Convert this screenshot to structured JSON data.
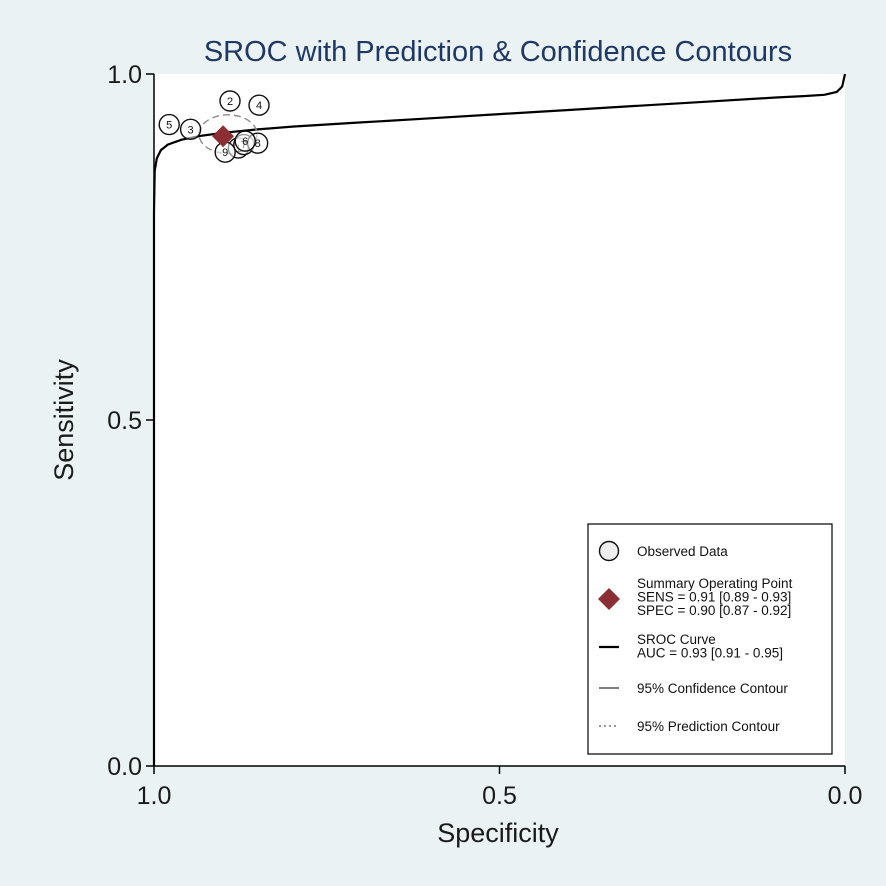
{
  "chart_data": {
    "type": "scatter",
    "title": "SROC with Prediction & Confidence Contours",
    "xlabel": "Specificity",
    "ylabel": "Sensitivity",
    "xlim": [
      1.0,
      0.0
    ],
    "ylim": [
      0.0,
      1.0
    ],
    "x_reversed": true,
    "grid": false,
    "x_ticks": [
      {
        "value": 1.0,
        "label": "1.0"
      },
      {
        "value": 0.5,
        "label": "0.5"
      },
      {
        "value": 0.0,
        "label": "0.0"
      }
    ],
    "y_ticks": [
      {
        "value": 0.0,
        "label": "0.0"
      },
      {
        "value": 0.5,
        "label": "0.5"
      },
      {
        "value": 1.0,
        "label": "1.0"
      }
    ],
    "observed_data": [
      {
        "study": "5",
        "specificity": 0.978,
        "sensitivity": 0.927
      },
      {
        "study": "3",
        "specificity": 0.947,
        "sensitivity": 0.92
      },
      {
        "study": "2",
        "specificity": 0.89,
        "sensitivity": 0.961
      },
      {
        "study": "4",
        "specificity": 0.848,
        "sensitivity": 0.955
      },
      {
        "study": "1",
        "specificity": 0.878,
        "sensitivity": 0.893
      },
      {
        "study": "7",
        "specificity": 0.87,
        "sensitivity": 0.898
      },
      {
        "study": "8",
        "specificity": 0.85,
        "sensitivity": 0.9
      },
      {
        "study": "9",
        "specificity": 0.897,
        "sensitivity": 0.887
      },
      {
        "study": "6",
        "specificity": 0.868,
        "sensitivity": 0.903
      }
    ],
    "summary_point": {
      "specificity": 0.9,
      "sensitivity": 0.91
    },
    "confidence_contour": {
      "center_specificity": 0.893,
      "center_sensitivity": 0.913,
      "half_width_specificity": 0.042,
      "half_height_sensitivity": 0.028
    },
    "sroc_curve": [
      {
        "specificity": 1.0,
        "sensitivity": 0.0
      },
      {
        "specificity": 1.0,
        "sensitivity": 0.8
      },
      {
        "specificity": 0.999,
        "sensitivity": 0.86
      },
      {
        "specificity": 0.996,
        "sensitivity": 0.878
      },
      {
        "specificity": 0.99,
        "sensitivity": 0.89
      },
      {
        "specificity": 0.98,
        "sensitivity": 0.898
      },
      {
        "specificity": 0.96,
        "sensitivity": 0.905
      },
      {
        "specificity": 0.93,
        "sensitivity": 0.911
      },
      {
        "specificity": 0.9,
        "sensitivity": 0.915
      },
      {
        "specificity": 0.85,
        "sensitivity": 0.92
      },
      {
        "specificity": 0.8,
        "sensitivity": 0.924
      },
      {
        "specificity": 0.7,
        "sensitivity": 0.93
      },
      {
        "specificity": 0.6,
        "sensitivity": 0.936
      },
      {
        "specificity": 0.5,
        "sensitivity": 0.942
      },
      {
        "specificity": 0.4,
        "sensitivity": 0.948
      },
      {
        "specificity": 0.3,
        "sensitivity": 0.954
      },
      {
        "specificity": 0.2,
        "sensitivity": 0.96
      },
      {
        "specificity": 0.1,
        "sensitivity": 0.966
      },
      {
        "specificity": 0.06,
        "sensitivity": 0.968
      },
      {
        "specificity": 0.03,
        "sensitivity": 0.97
      },
      {
        "specificity": 0.012,
        "sensitivity": 0.974
      },
      {
        "specificity": 0.004,
        "sensitivity": 0.982
      },
      {
        "specificity": 0.0,
        "sensitivity": 1.0
      }
    ],
    "legend": {
      "placement": "bottom-right",
      "entries": [
        {
          "symbol": "circle",
          "lines": [
            "Observed Data"
          ]
        },
        {
          "symbol": "diamond",
          "lines": [
            "Summary Operating Point",
            "SENS = 0.91 [0.89 - 0.93]",
            "SPEC = 0.90 [0.87 - 0.92]"
          ]
        },
        {
          "symbol": "solid-line",
          "lines": [
            "SROC Curve",
            "AUC = 0.93 [0.91 - 0.95]"
          ]
        },
        {
          "symbol": "dash-line",
          "lines": [
            "95% Confidence Contour"
          ]
        },
        {
          "symbol": "dot-line",
          "lines": [
            "95% Prediction Contour"
          ]
        }
      ]
    },
    "colors": {
      "background": "#eaf2f3",
      "plot_area": "#ffffff",
      "title": "#1f3864",
      "summary_point": "#8b2f35",
      "curve": "#000000",
      "contour": "#8c8c8c"
    }
  }
}
